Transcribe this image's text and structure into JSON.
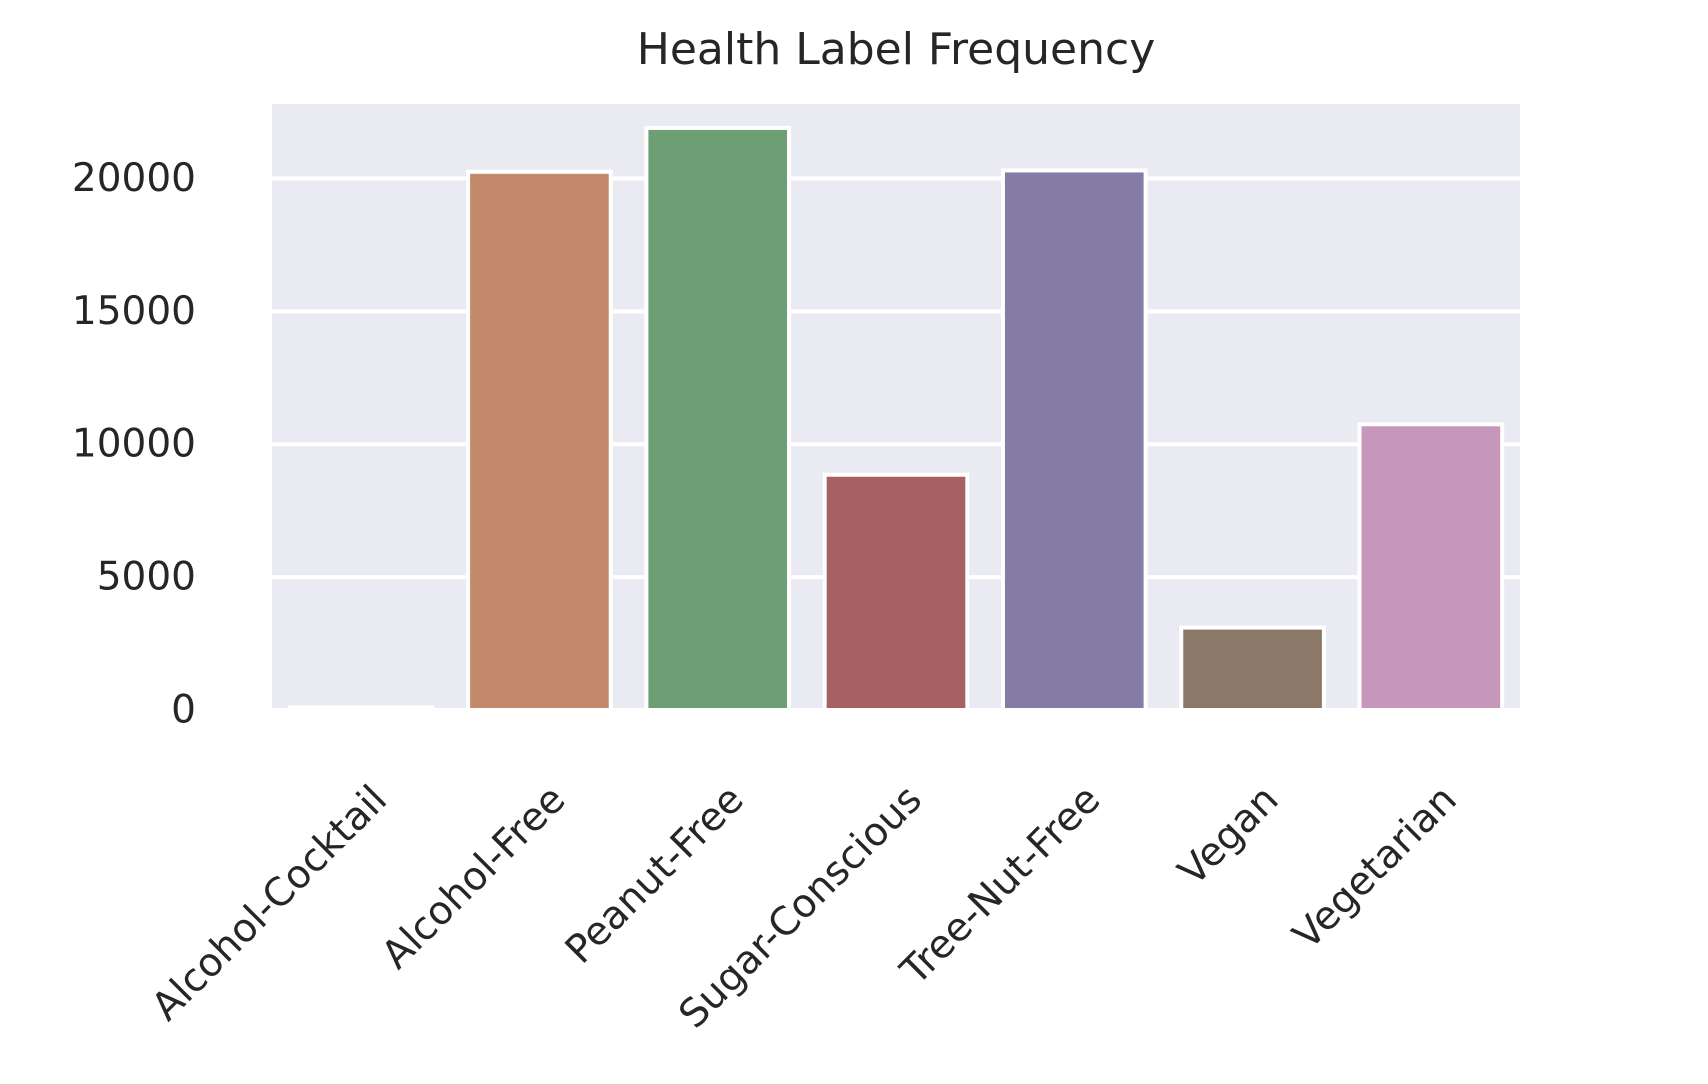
{
  "chart_data": {
    "type": "bar",
    "title": "Health Label Frequency",
    "xlabel": "",
    "ylabel": "",
    "categories": [
      "Alcohol-Cocktail",
      "Alcohol-Free",
      "Peanut-Free",
      "Sugar-Conscious",
      "Tree-Nut-Free",
      "Vegan",
      "Vegetarian"
    ],
    "values": [
      100,
      20250,
      21900,
      8850,
      20300,
      3100,
      10750
    ],
    "colors": [
      "#4c72b0",
      "#c4886a",
      "#6d9e74",
      "#a86162",
      "#847ba6",
      "#8b7868",
      "#c796bb"
    ],
    "ylim": [
      0,
      22800
    ],
    "yticks": [
      0,
      5000,
      10000,
      15000,
      20000
    ],
    "grid": true,
    "background": "#eaeaf2",
    "grid_color": "#ffffff",
    "bar_edge_color": "#ffffff",
    "xtick_rotation": "45"
  }
}
